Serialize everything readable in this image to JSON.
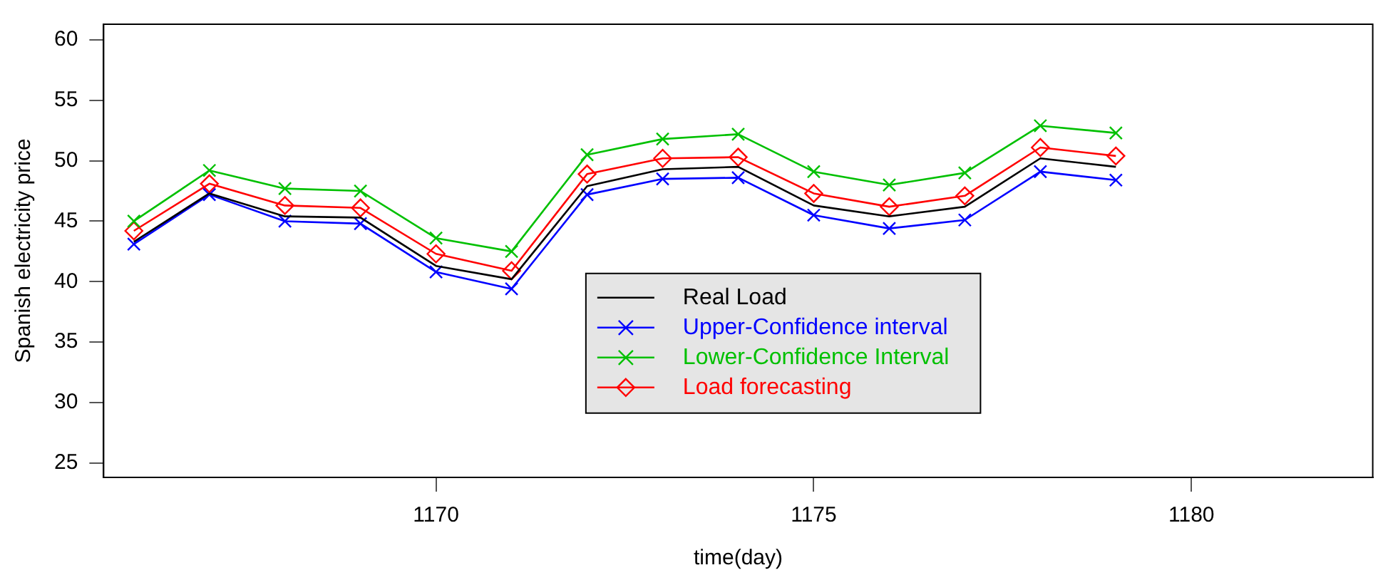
{
  "chart_data": {
    "type": "line",
    "xlabel": "time(day)",
    "ylabel": "Spanish electricity price",
    "x": [
      1166,
      1167,
      1168,
      1169,
      1170,
      1171,
      1172,
      1173,
      1174,
      1175,
      1176,
      1177,
      1178,
      1179
    ],
    "series": [
      {
        "name": "Real Load",
        "color": "#000000",
        "marker": "none",
        "values": [
          43.3,
          47.3,
          45.4,
          45.3,
          41.3,
          40.2,
          47.9,
          49.3,
          49.5,
          46.3,
          45.4,
          46.2,
          50.2,
          49.5
        ]
      },
      {
        "name": "Upper-Confidence interval",
        "color": "#0000ff",
        "marker": "cross",
        "values": [
          43.1,
          47.2,
          45.0,
          44.8,
          40.8,
          39.4,
          47.2,
          48.5,
          48.6,
          45.5,
          44.4,
          45.1,
          49.1,
          48.4
        ]
      },
      {
        "name": "Lower-Confidence Interval",
        "color": "#00c000",
        "marker": "cross",
        "values": [
          45.0,
          49.2,
          47.7,
          47.5,
          43.6,
          42.5,
          50.5,
          51.8,
          52.2,
          49.1,
          48.0,
          49.0,
          52.9,
          52.3
        ]
      },
      {
        "name": "Load forecasting",
        "color": "#ff0000",
        "marker": "diamond",
        "values": [
          44.2,
          48.1,
          46.3,
          46.1,
          42.3,
          40.9,
          48.9,
          50.2,
          50.3,
          47.3,
          46.2,
          47.1,
          51.1,
          50.4
        ]
      }
    ],
    "xlim": [
      1165.6,
      1182.4
    ],
    "xticks": [
      1170,
      1175,
      1180
    ],
    "ylim": [
      23.8,
      61.3
    ],
    "yticks": [
      25,
      30,
      35,
      40,
      45,
      50,
      55,
      60
    ],
    "grid": false,
    "legend": "bottom"
  }
}
